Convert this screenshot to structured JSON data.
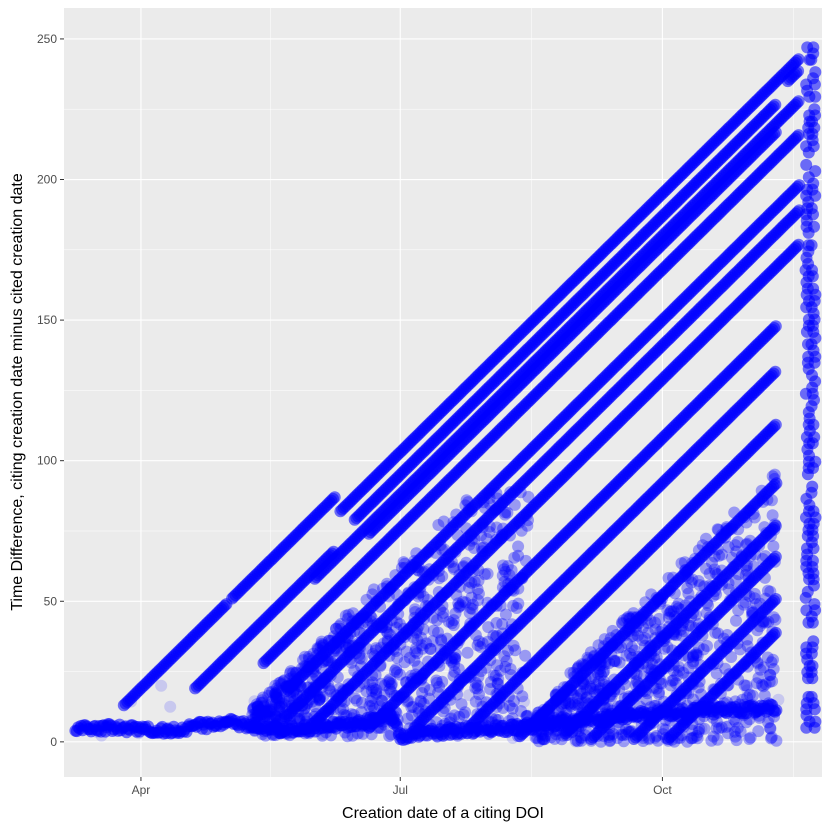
{
  "chart_data": {
    "type": "scatter",
    "title": "",
    "xlabel": "Creation date of a citing DOI",
    "ylabel": "Time Difference, citing creation date minus cited creation date",
    "x_axis": {
      "type": "date",
      "range": [
        "2020-03-05",
        "2020-11-26"
      ],
      "ticks": [
        {
          "value": "2020-04-01",
          "label": "Apr"
        },
        {
          "value": "2020-07-01",
          "label": "Jul"
        },
        {
          "value": "2020-10-01",
          "label": "Oct"
        }
      ]
    },
    "y_axis": {
      "range": [
        -12.5,
        261
      ],
      "ticks": [
        0,
        50,
        100,
        150,
        200,
        250
      ]
    },
    "grid": true,
    "legend": "none",
    "colors": {
      "panel": "#ebebeb",
      "grid_major": "#ffffff",
      "point": "#0000ff"
    },
    "series": [
      {
        "kind": "diagonal_bands",
        "description_values": "points lie on lines y = days(x - cited_date) for each cited DOI",
        "bands": [
          {
            "cited_date": "2020-03-13",
            "x_start": "2020-03-26",
            "x_end": "2020-05-01"
          },
          {
            "cited_date": "2020-03-13",
            "x_start": "2020-05-03",
            "x_end": "2020-06-08"
          },
          {
            "cited_date": "2020-04-01",
            "x_start": "2020-04-20",
            "x_end": "2020-06-08"
          },
          {
            "cited_date": "2020-03-20",
            "x_start": "2020-06-10",
            "x_end": "2020-11-18"
          },
          {
            "cited_date": "2020-03-28",
            "x_start": "2020-06-15",
            "x_end": "2020-11-10"
          },
          {
            "cited_date": "2020-03-24",
            "x_start": "2020-11-14",
            "x_end": "2020-11-18"
          },
          {
            "cited_date": "2020-04-04",
            "x_start": "2020-06-01",
            "x_end": "2020-11-18"
          },
          {
            "cited_date": "2020-04-07",
            "x_start": "2020-06-20",
            "x_end": "2020-11-10"
          },
          {
            "cited_date": "2020-04-16",
            "x_start": "2020-05-14",
            "x_end": "2020-11-18"
          },
          {
            "cited_date": "2020-05-04",
            "x_start": "2020-05-22",
            "x_end": "2020-11-18"
          },
          {
            "cited_date": "2020-05-13",
            "x_start": "2020-05-22",
            "x_end": "2020-11-18"
          },
          {
            "cited_date": "2020-05-25",
            "x_start": "2020-06-01",
            "x_end": "2020-11-18"
          },
          {
            "cited_date": "2020-06-15",
            "x_start": "2020-06-20",
            "x_end": "2020-11-10"
          },
          {
            "cited_date": "2020-07-01",
            "x_start": "2020-07-06",
            "x_end": "2020-11-10"
          },
          {
            "cited_date": "2020-07-20",
            "x_start": "2020-07-26",
            "x_end": "2020-11-10"
          },
          {
            "cited_date": "2020-08-10",
            "x_start": "2020-08-12",
            "x_end": "2020-11-10"
          },
          {
            "cited_date": "2020-08-25",
            "x_start": "2020-08-28",
            "x_end": "2020-11-10"
          },
          {
            "cited_date": "2020-09-05",
            "x_start": "2020-09-06",
            "x_end": "2020-11-10"
          },
          {
            "cited_date": "2020-09-20",
            "x_start": "2020-09-21",
            "x_end": "2020-11-10"
          },
          {
            "cited_date": "2020-10-02",
            "x_start": "2020-10-03",
            "x_end": "2020-11-10"
          }
        ],
        "filled_regions": [
          {
            "x_start": "2020-08-17",
            "x_end": "2020-11-10",
            "y_low": 0,
            "y_high": 140
          },
          {
            "x_start": "2020-05-10",
            "x_end": "2020-08-15",
            "y_low": 2,
            "y_high": 90
          }
        ],
        "vertical_columns": [
          {
            "x": "2020-11-21",
            "y_low": 5,
            "y_high": 247
          },
          {
            "x": "2020-11-23",
            "y_low": 5,
            "y_high": 247
          }
        ],
        "baseline": [
          {
            "x": "2020-03-09",
            "y": 5
          },
          {
            "x": "2020-03-20",
            "y": 5
          },
          {
            "x": "2020-04-10",
            "y": 4
          },
          {
            "x": "2020-05-01",
            "y": 7
          },
          {
            "x": "2020-05-20",
            "y": 4
          },
          {
            "x": "2020-06-10",
            "y": 6
          },
          {
            "x": "2020-06-28",
            "y": 9
          },
          {
            "x": "2020-07-01",
            "y": 2
          },
          {
            "x": "2020-07-20",
            "y": 4
          },
          {
            "x": "2020-08-10",
            "y": 5
          },
          {
            "x": "2020-08-28",
            "y": 7
          },
          {
            "x": "2020-09-15",
            "y": 9
          },
          {
            "x": "2020-10-15",
            "y": 11
          },
          {
            "x": "2020-11-10",
            "y": 12
          }
        ]
      }
    ]
  }
}
